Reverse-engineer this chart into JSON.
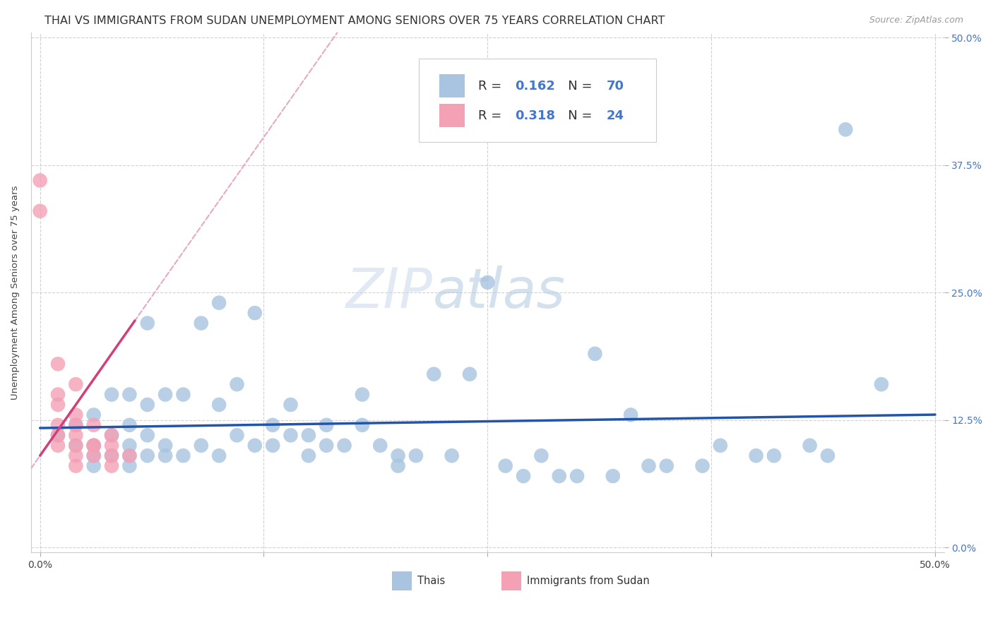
{
  "title": "THAI VS IMMIGRANTS FROM SUDAN UNEMPLOYMENT AMONG SENIORS OVER 75 YEARS CORRELATION CHART",
  "source": "Source: ZipAtlas.com",
  "ylabel": "Unemployment Among Seniors over 75 years",
  "ytick_values": [
    0,
    0.125,
    0.25,
    0.375,
    0.5
  ],
  "xtick_values": [
    0,
    0.125,
    0.25,
    0.375,
    0.5
  ],
  "xlim": [
    -0.005,
    0.505
  ],
  "ylim": [
    -0.005,
    0.505
  ],
  "legend_thai_R": "0.162",
  "legend_thai_N": "70",
  "legend_sudan_R": "0.318",
  "legend_sudan_N": "24",
  "thai_color": "#a8c4e0",
  "thai_trend_color": "#2255aa",
  "sudan_color": "#f4a0b5",
  "sudan_trend_color": "#d0407a",
  "sudan_trend_dash_color": "#e8aac0",
  "background": "#ffffff",
  "grid_color": "#cccccc",
  "watermark_zip": "ZIP",
  "watermark_atlas": "atlas",
  "thai_x": [
    0.01,
    0.02,
    0.02,
    0.03,
    0.03,
    0.03,
    0.03,
    0.04,
    0.04,
    0.04,
    0.05,
    0.05,
    0.05,
    0.05,
    0.05,
    0.06,
    0.06,
    0.06,
    0.06,
    0.07,
    0.07,
    0.07,
    0.08,
    0.08,
    0.09,
    0.09,
    0.1,
    0.1,
    0.1,
    0.11,
    0.11,
    0.12,
    0.12,
    0.13,
    0.13,
    0.14,
    0.14,
    0.15,
    0.15,
    0.16,
    0.16,
    0.17,
    0.18,
    0.18,
    0.19,
    0.2,
    0.2,
    0.21,
    0.22,
    0.23,
    0.24,
    0.25,
    0.26,
    0.27,
    0.28,
    0.29,
    0.3,
    0.31,
    0.32,
    0.33,
    0.34,
    0.35,
    0.37,
    0.38,
    0.4,
    0.41,
    0.43,
    0.44,
    0.45,
    0.47
  ],
  "thai_y": [
    0.11,
    0.1,
    0.12,
    0.08,
    0.09,
    0.1,
    0.13,
    0.09,
    0.11,
    0.15,
    0.08,
    0.09,
    0.1,
    0.12,
    0.15,
    0.09,
    0.11,
    0.14,
    0.22,
    0.09,
    0.1,
    0.15,
    0.09,
    0.15,
    0.1,
    0.22,
    0.09,
    0.14,
    0.24,
    0.11,
    0.16,
    0.1,
    0.23,
    0.1,
    0.12,
    0.11,
    0.14,
    0.09,
    0.11,
    0.1,
    0.12,
    0.1,
    0.12,
    0.15,
    0.1,
    0.08,
    0.09,
    0.09,
    0.17,
    0.09,
    0.17,
    0.26,
    0.08,
    0.07,
    0.09,
    0.07,
    0.07,
    0.19,
    0.07,
    0.13,
    0.08,
    0.08,
    0.08,
    0.1,
    0.09,
    0.09,
    0.1,
    0.09,
    0.41,
    0.16
  ],
  "sudan_x": [
    0.0,
    0.0,
    0.01,
    0.01,
    0.01,
    0.01,
    0.01,
    0.01,
    0.02,
    0.02,
    0.02,
    0.02,
    0.02,
    0.02,
    0.02,
    0.03,
    0.03,
    0.03,
    0.03,
    0.04,
    0.04,
    0.04,
    0.04,
    0.05
  ],
  "sudan_y": [
    0.33,
    0.36,
    0.1,
    0.11,
    0.12,
    0.14,
    0.15,
    0.18,
    0.08,
    0.09,
    0.1,
    0.11,
    0.12,
    0.13,
    0.16,
    0.09,
    0.1,
    0.1,
    0.12,
    0.08,
    0.09,
    0.1,
    0.11,
    0.09
  ],
  "title_fontsize": 11.5,
  "source_fontsize": 9,
  "axis_label_fontsize": 9.5,
  "tick_fontsize": 10,
  "legend_fontsize": 13
}
